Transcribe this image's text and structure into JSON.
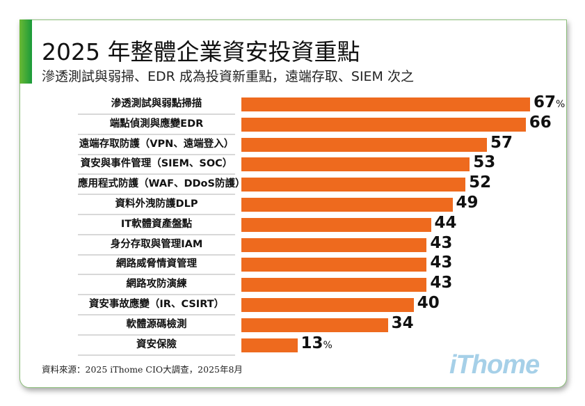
{
  "chart_data": {
    "type": "bar",
    "orientation": "horizontal",
    "title": "2025 年整體企業資安投資重點",
    "subtitle": "滲透測試與弱掃、EDR 成為投資新重點，遠端存取、SIEM 次之",
    "unit": "%",
    "categories": [
      "滲透測試與弱點掃描",
      "端點偵測與應變EDR",
      "遠端存取防護（VPN、遠端登入）",
      "資安與事件管理（SIEM、SOC）",
      "應用程式防護（WAF、DDoS防護）",
      "資料外洩防護DLP",
      "IT軟體資產盤點",
      "身分存取與管理IAM",
      "網路威脅情資管理",
      "網路攻防演練",
      "資安事故應變（IR、CSIRT）",
      "軟體源碼檢測",
      "資安保險"
    ],
    "values": [
      67,
      66,
      57,
      53,
      52,
      49,
      44,
      43,
      43,
      43,
      40,
      34,
      13
    ],
    "xlim": [
      0,
      67
    ],
    "bar_color": "#ee6a1e",
    "source": "資料來源：2025 iThome CIO大調查，2025年8月"
  },
  "logo": "iThome"
}
